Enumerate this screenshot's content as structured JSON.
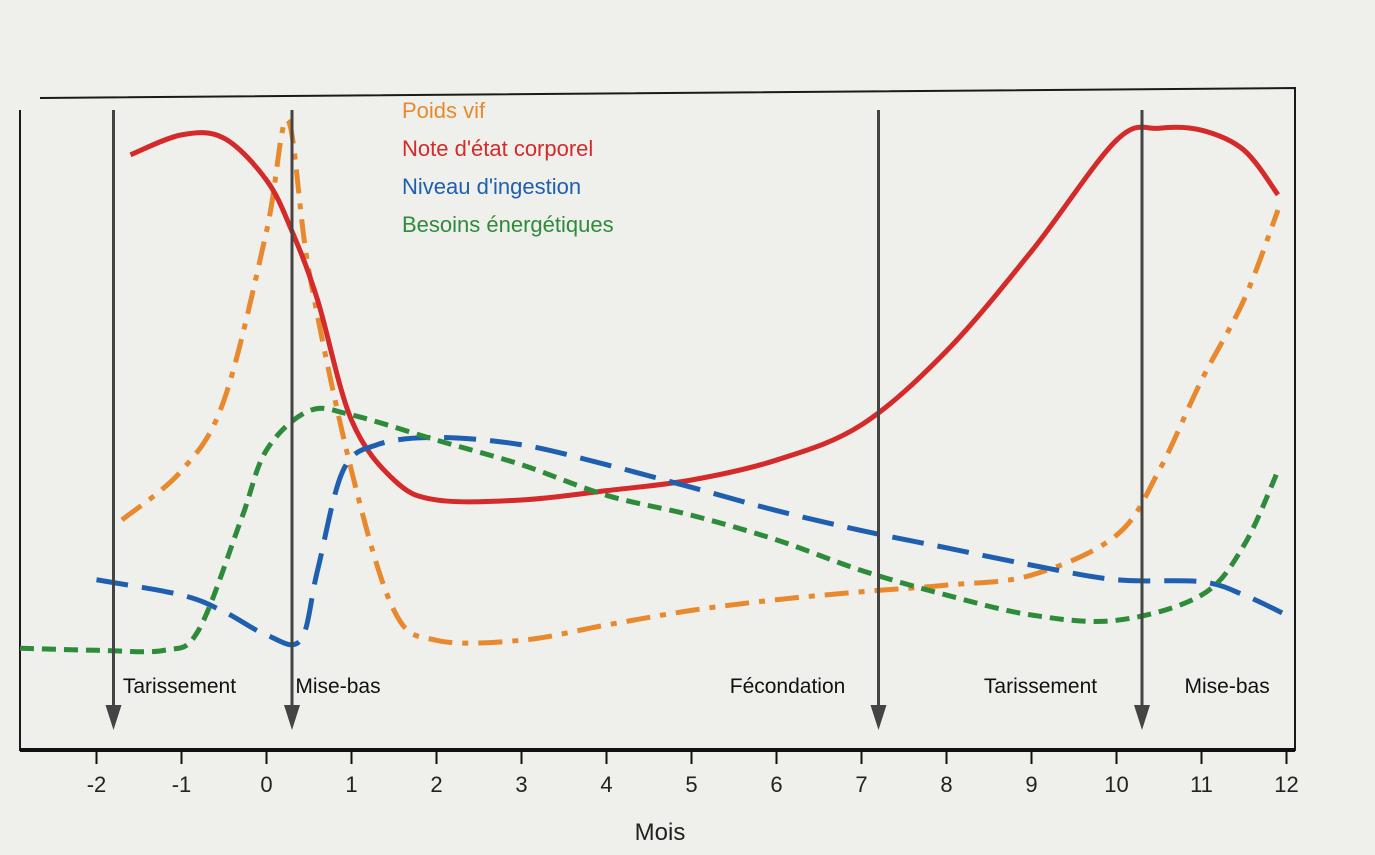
{
  "chart_data": {
    "type": "line",
    "xlabel": "Mois",
    "xlim": [
      -2.9,
      12.1
    ],
    "ylim": [
      0,
      100
    ],
    "xticks": [
      -2,
      -1,
      0,
      1,
      2,
      3,
      4,
      5,
      6,
      7,
      8,
      9,
      10,
      11,
      12
    ],
    "series": [
      {
        "name": "Poids vif",
        "color": "#e8892e",
        "dash": "dashdot",
        "x": [
          -1.7,
          -1,
          -0.5,
          0,
          0.25,
          0.5,
          1,
          1.5,
          2,
          3,
          4,
          5,
          6,
          7,
          8,
          9,
          10,
          10.5,
          11,
          11.5,
          11.9
        ],
        "values": [
          34.6,
          42,
          52.6,
          78,
          94.7,
          72,
          42,
          21,
          16.5,
          16.5,
          18.8,
          21,
          22.6,
          23.8,
          24.8,
          26.3,
          32.3,
          42,
          55.6,
          67.7,
          81.2
        ]
      },
      {
        "name": "Note d'état corporel",
        "color": "#d42a2a",
        "dash": "solid",
        "x": [
          -1.6,
          -1,
          -0.5,
          0,
          0.3,
          0.6,
          1,
          1.5,
          2,
          3,
          4,
          5,
          6,
          7,
          8,
          9,
          10,
          10.5,
          11,
          11.5,
          11.9
        ],
        "values": [
          89.5,
          92.5,
          92,
          85.7,
          78,
          67.7,
          49.6,
          40.6,
          37.6,
          37.6,
          39,
          40.6,
          43.6,
          48.9,
          60,
          75,
          91.7,
          93.5,
          93.2,
          90.2,
          83.5
        ]
      },
      {
        "name": "Niveau d'ingestion",
        "color": "#1f5fb0",
        "dash": "dashed",
        "x": [
          -2,
          -1,
          -0.5,
          0,
          0.4,
          0.6,
          0.9,
          1.3,
          2,
          3,
          4,
          5,
          6,
          7,
          8,
          9,
          10,
          11,
          11.5,
          12
        ],
        "values": [
          25.6,
          23.3,
          20.8,
          17.3,
          16.5,
          27,
          42,
          45.9,
          47,
          45.9,
          42.9,
          39.5,
          36,
          33,
          30.4,
          27.8,
          25.6,
          25.3,
          23.3,
          20.3
        ]
      },
      {
        "name": "Besoins énergétiques",
        "color": "#2e8b3a",
        "dash": "dotted",
        "x": [
          -2.9,
          -2,
          -1.2,
          -0.8,
          -0.3,
          0,
          0.5,
          1,
          2,
          3,
          4,
          5,
          6,
          7,
          8,
          9,
          10,
          11,
          11.5,
          11.9
        ],
        "values": [
          15.3,
          15,
          15,
          18,
          34.6,
          45.1,
          51,
          50.4,
          46.6,
          42.9,
          38.3,
          35.3,
          31.6,
          27,
          23.3,
          20.3,
          19.5,
          23.3,
          30.8,
          42
        ]
      }
    ],
    "arrows": [
      -1.8,
      0.3,
      7.2,
      10.3
    ],
    "annotations": [
      {
        "text": "Tarissement",
        "x": -1.69
      },
      {
        "text": "Mise-bas",
        "x": 0.34
      },
      {
        "text": "Fécondation",
        "x": 5.45
      },
      {
        "text": "Tarissement",
        "x": 8.44
      },
      {
        "text": "Mise-bas",
        "x": 10.8
      }
    ]
  }
}
